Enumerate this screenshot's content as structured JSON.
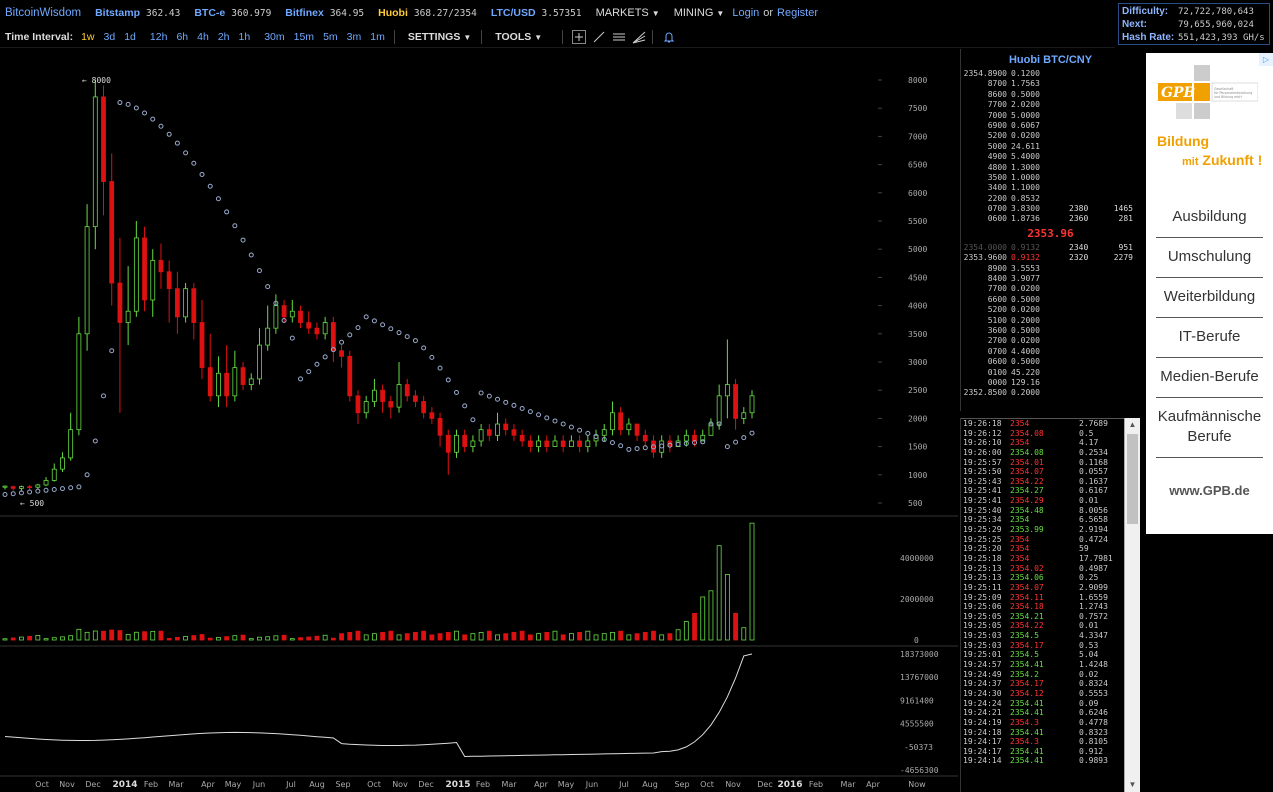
{
  "header": {
    "brand": "BitcoinWisdom",
    "exchanges": [
      {
        "name": "Bitstamp",
        "price": "362.43",
        "highlight": false
      },
      {
        "name": "BTC-e",
        "price": "360.979",
        "highlight": false
      },
      {
        "name": "Bitfinex",
        "price": "364.95",
        "highlight": false
      },
      {
        "name": "Huobi",
        "price": "368.27/2354",
        "highlight": true
      },
      {
        "name": "LTC/USD",
        "price": "3.57351",
        "highlight": false
      }
    ],
    "markets_label": "MARKETS",
    "mining_label": "MINING",
    "login_label": "Login",
    "or_label": "or",
    "register_label": "Register"
  },
  "network": {
    "difficulty_label": "Difficulty:",
    "difficulty_value": "72,722,780,643",
    "next_label": "Next:",
    "next_value": "79,655,960,024",
    "hashrate_label": "Hash Rate:",
    "hashrate_value": "551,423,393 GH/s"
  },
  "toolbar": {
    "time_interval_label": "Time Interval:",
    "intervals": [
      "1w",
      "3d",
      "1d",
      "12h",
      "6h",
      "4h",
      "2h",
      "1h",
      "30m",
      "15m",
      "5m",
      "3m",
      "1m"
    ],
    "active_interval": "1w",
    "settings_label": "SETTINGS",
    "tools_label": "TOOLS",
    "tool_icons": [
      "crosshair-icon",
      "trendline-icon",
      "horizontal-lines-icon",
      "fan-icon",
      "alert-bell-icon"
    ]
  },
  "chart_data": {
    "type": "candlestick",
    "price_axis_ticks": [
      8000,
      7500,
      7000,
      6500,
      6000,
      5500,
      5000,
      4500,
      4000,
      3500,
      3000,
      2500,
      2000,
      1500,
      1000,
      500
    ],
    "volume_axis_ticks": [
      "4000000",
      "2000000",
      "0"
    ],
    "indicator_axis_ticks": [
      "18373000",
      "13767000",
      "9161400",
      "4555500",
      "-50373",
      "-4656300"
    ],
    "x_axis_labels": [
      "Oct",
      "Nov",
      "Dec",
      "2014",
      "Feb",
      "Mar",
      "Apr",
      "May",
      "Jun",
      "Jul",
      "Aug",
      "Sep",
      "Oct",
      "Nov",
      "Dec",
      "2015",
      "Feb",
      "Mar",
      "Apr",
      "May",
      "Jun",
      "Jul",
      "Aug",
      "Sep",
      "Oct",
      "Nov",
      "Dec",
      "2016",
      "Feb",
      "Mar",
      "Apr"
    ],
    "now_label": "Now",
    "high_marker": "8000",
    "low_marker": "500",
    "colors": {
      "up": "#66dd44",
      "down": "#dd1111",
      "sar": "#99aacc",
      "indicator": "#dddddd"
    }
  },
  "orderbook": {
    "title": "Huobi BTC/CNY",
    "asks": [
      {
        "p": "2354.8900",
        "a": "0.1200"
      },
      {
        "p": "8700",
        "a": "1.7563"
      },
      {
        "p": "8600",
        "a": "0.5000"
      },
      {
        "p": "7700",
        "a": "2.0200"
      },
      {
        "p": "7000",
        "a": "5.0000"
      },
      {
        "p": "6900",
        "a": "0.6067"
      },
      {
        "p": "5200",
        "a": "0.0200"
      },
      {
        "p": "5000",
        "a": "24.611"
      },
      {
        "p": "4900",
        "a": "5.4000"
      },
      {
        "p": "4800",
        "a": "1.3000"
      },
      {
        "p": "3500",
        "a": "1.0000"
      },
      {
        "p": "3400",
        "a": "1.1000"
      },
      {
        "p": "2200",
        "a": "0.8532"
      },
      {
        "p": "0700",
        "a": "3.8300",
        "s1": "2380",
        "s2": "1465"
      },
      {
        "p": "0600",
        "a": "1.8736",
        "s1": "2360",
        "s2": "281"
      }
    ],
    "last_price": "2353.96",
    "bids": [
      {
        "p": "2354.0000",
        "a": "0.9132",
        "s1": "2340",
        "s2": "951",
        "dim": true
      },
      {
        "p": "2353.9600",
        "a": "0.9132",
        "s1": "2320",
        "s2": "2279"
      },
      {
        "p": "8900",
        "a": "3.5553"
      },
      {
        "p": "8400",
        "a": "3.9077"
      },
      {
        "p": "7700",
        "a": "0.0200"
      },
      {
        "p": "6600",
        "a": "0.5000"
      },
      {
        "p": "5200",
        "a": "0.0200"
      },
      {
        "p": "5100",
        "a": "0.2000"
      },
      {
        "p": "3600",
        "a": "0.5000"
      },
      {
        "p": "2700",
        "a": "0.0200"
      },
      {
        "p": "0700",
        "a": "4.4000"
      },
      {
        "p": "0600",
        "a": "0.5000"
      },
      {
        "p": "0100",
        "a": "45.220"
      },
      {
        "p": "0000",
        "a": "129.16"
      },
      {
        "p": "2352.8500",
        "a": "0.2000"
      }
    ]
  },
  "trades": [
    {
      "t": "19:26:18",
      "p": "2354",
      "a": "2.7689",
      "d": "dn"
    },
    {
      "t": "19:26:12",
      "p": "2354.08",
      "a": "0.5",
      "d": "dn"
    },
    {
      "t": "19:26:10",
      "p": "2354",
      "a": "4.17",
      "d": "dn"
    },
    {
      "t": "19:26:00",
      "p": "2354.08",
      "a": "0.2534",
      "d": "up"
    },
    {
      "t": "19:25:57",
      "p": "2354.01",
      "a": "0.1168",
      "d": "dn"
    },
    {
      "t": "19:25:50",
      "p": "2354.07",
      "a": "0.0557",
      "d": "dn"
    },
    {
      "t": "19:25:43",
      "p": "2354.22",
      "a": "0.1637",
      "d": "dn"
    },
    {
      "t": "19:25:41",
      "p": "2354.27",
      "a": "0.6167",
      "d": "up"
    },
    {
      "t": "19:25:41",
      "p": "2354.29",
      "a": "0.01",
      "d": "dn"
    },
    {
      "t": "19:25:40",
      "p": "2354.48",
      "a": "8.0056",
      "d": "up"
    },
    {
      "t": "19:25:34",
      "p": "2354",
      "a": "6.5658",
      "d": "up"
    },
    {
      "t": "19:25:29",
      "p": "2353.99",
      "a": "2.9194",
      "d": "up"
    },
    {
      "t": "19:25:25",
      "p": "2354",
      "a": "0.4724",
      "d": "dn"
    },
    {
      "t": "19:25:20",
      "p": "2354",
      "a": "59",
      "d": "dn"
    },
    {
      "t": "19:25:18",
      "p": "2354",
      "a": "17.7981",
      "d": "dn"
    },
    {
      "t": "19:25:13",
      "p": "2354.02",
      "a": "0.4987",
      "d": "dn"
    },
    {
      "t": "19:25:13",
      "p": "2354.06",
      "a": "0.25",
      "d": "up"
    },
    {
      "t": "19:25:11",
      "p": "2354.07",
      "a": "2.9099",
      "d": "dn"
    },
    {
      "t": "19:25:09",
      "p": "2354.11",
      "a": "1.6559",
      "d": "dn"
    },
    {
      "t": "19:25:06",
      "p": "2354.18",
      "a": "1.2743",
      "d": "dn"
    },
    {
      "t": "19:25:05",
      "p": "2354.21",
      "a": "0.7572",
      "d": "up"
    },
    {
      "t": "19:25:05",
      "p": "2354.22",
      "a": "0.01",
      "d": "dn"
    },
    {
      "t": "19:25:03",
      "p": "2354.5",
      "a": "4.3347",
      "d": "up"
    },
    {
      "t": "19:25:03",
      "p": "2354.17",
      "a": "0.53",
      "d": "dn"
    },
    {
      "t": "19:25:01",
      "p": "2354.5",
      "a": "5.04",
      "d": "up"
    },
    {
      "t": "19:24:57",
      "p": "2354.41",
      "a": "1.4248",
      "d": "up"
    },
    {
      "t": "19:24:49",
      "p": "2354.2",
      "a": "0.02",
      "d": "up"
    },
    {
      "t": "19:24:37",
      "p": "2354.17",
      "a": "0.8324",
      "d": "dn"
    },
    {
      "t": "19:24:30",
      "p": "2354.12",
      "a": "0.5553",
      "d": "dn"
    },
    {
      "t": "19:24:24",
      "p": "2354.41",
      "a": "0.09",
      "d": "up"
    },
    {
      "t": "19:24:21",
      "p": "2354.41",
      "a": "0.6246",
      "d": "up"
    },
    {
      "t": "19:24:19",
      "p": "2354.3",
      "a": "0.4778",
      "d": "dn"
    },
    {
      "t": "19:24:18",
      "p": "2354.41",
      "a": "0.8323",
      "d": "up"
    },
    {
      "t": "19:24:17",
      "p": "2354.3",
      "a": "0.8105",
      "d": "dn"
    },
    {
      "t": "19:24:17",
      "p": "2354.41",
      "a": "0.912",
      "d": "up"
    },
    {
      "t": "19:24:14",
      "p": "2354.41",
      "a": "0.9893",
      "d": "up"
    }
  ],
  "ad": {
    "info_icon": "ad-info-icon",
    "logo_text": "GPB",
    "logo_subtext": "Gesellschaft für Personalentwicklung und Bildung mbH",
    "tagline_1": "Bildung",
    "tagline_2a": "mit",
    "tagline_2b": "Zukunft !",
    "items": [
      "Ausbildung",
      "Umschulung",
      "Weiterbildung",
      "IT-Berufe",
      "Medien-Berufe",
      "Kaufmännische Berufe"
    ],
    "url": "www.GPB.de"
  }
}
